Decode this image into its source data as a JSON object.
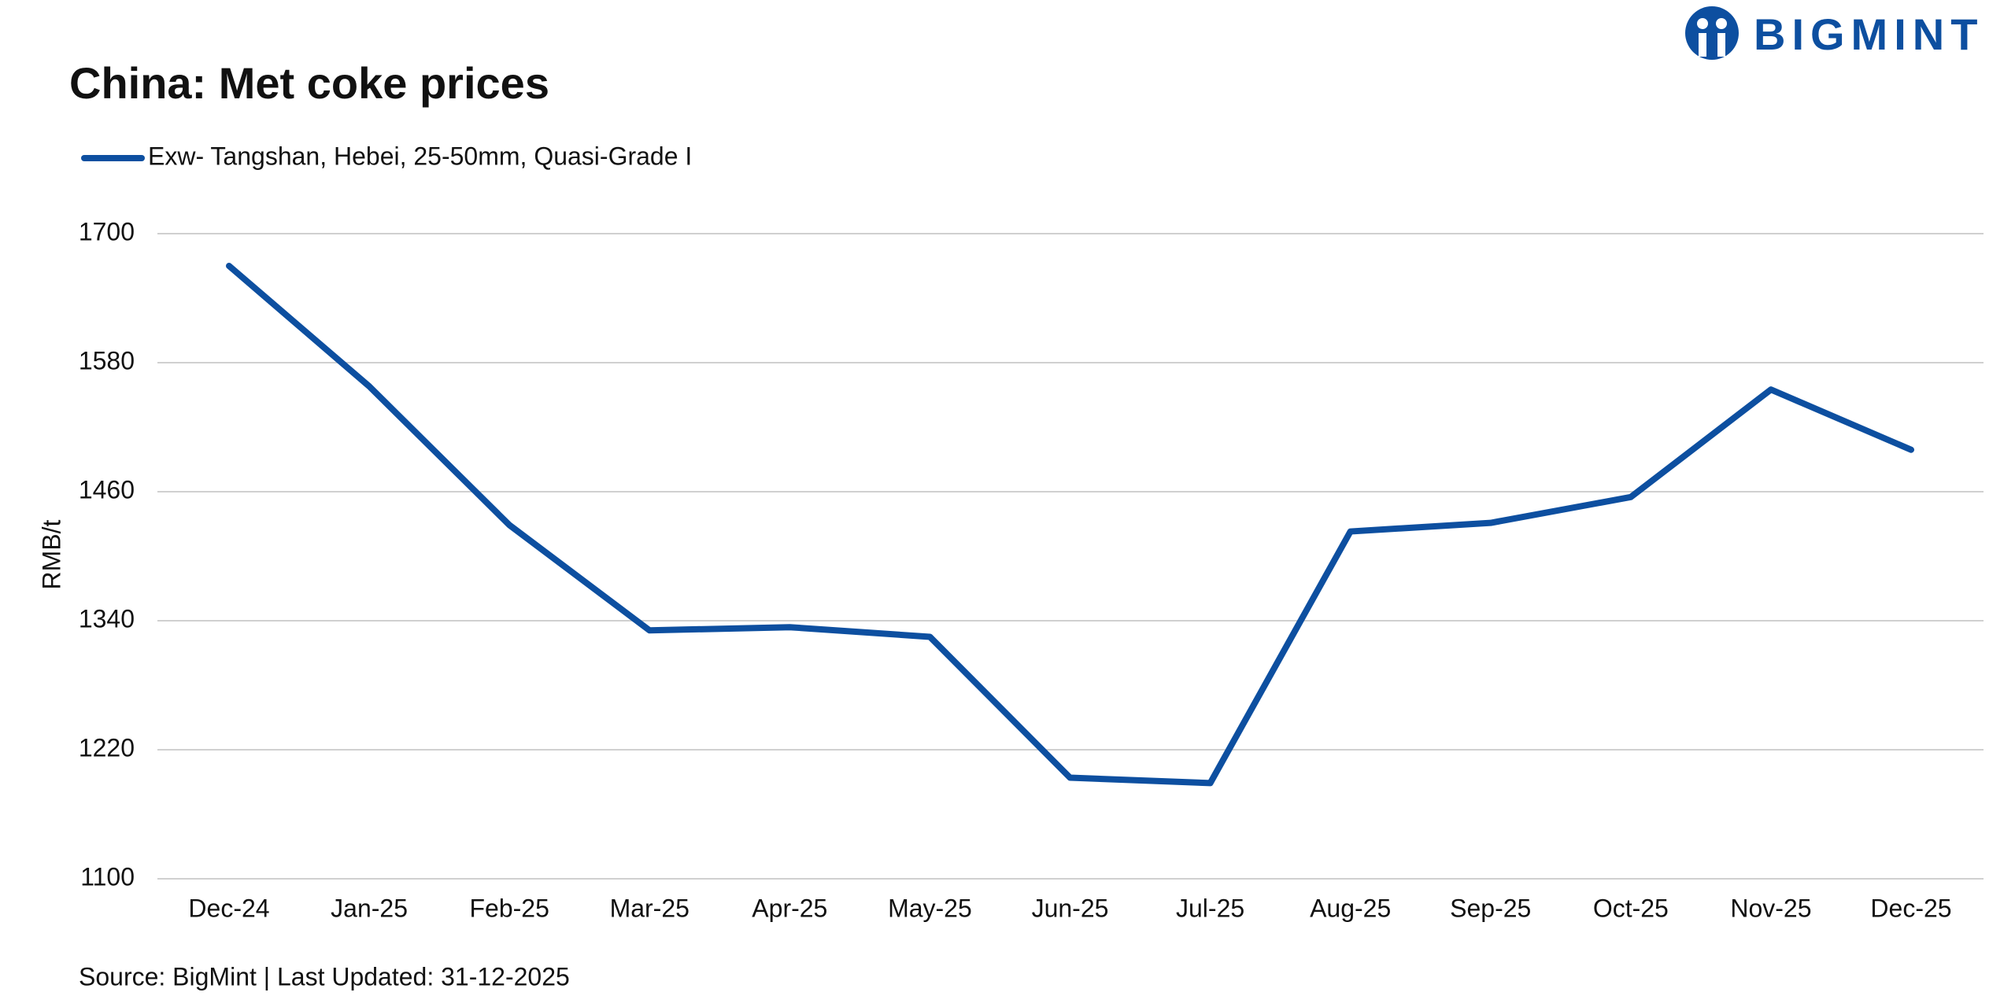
{
  "logo": "BIGMINT",
  "chart_data": {
    "type": "line",
    "title": "China: Met coke prices",
    "y_label": "RMB/t",
    "categories": [
      "Dec-24",
      "Jan-25",
      "Feb-25",
      "Mar-25",
      "Apr-25",
      "May-25",
      "Jun-25",
      "Jul-25",
      "Aug-25",
      "Sep-25",
      "Oct-25",
      "Nov-25",
      "Dec-25"
    ],
    "series": [
      {
        "name": "Exw- Tangshan, Hebei, 25-50mm, Quasi-Grade I",
        "color": "#0d4fa0",
        "values": [
          1670,
          1558,
          1429,
          1331,
          1334,
          1325,
          1194,
          1189,
          1423,
          1431,
          1455,
          1555,
          1499
        ]
      }
    ],
    "ylim": [
      1100,
      1700
    ],
    "yticks": [
      1100,
      1220,
      1340,
      1460,
      1580,
      1700
    ],
    "grid": true,
    "source": "Source: BigMint | Last Updated: 31-12-2025"
  }
}
